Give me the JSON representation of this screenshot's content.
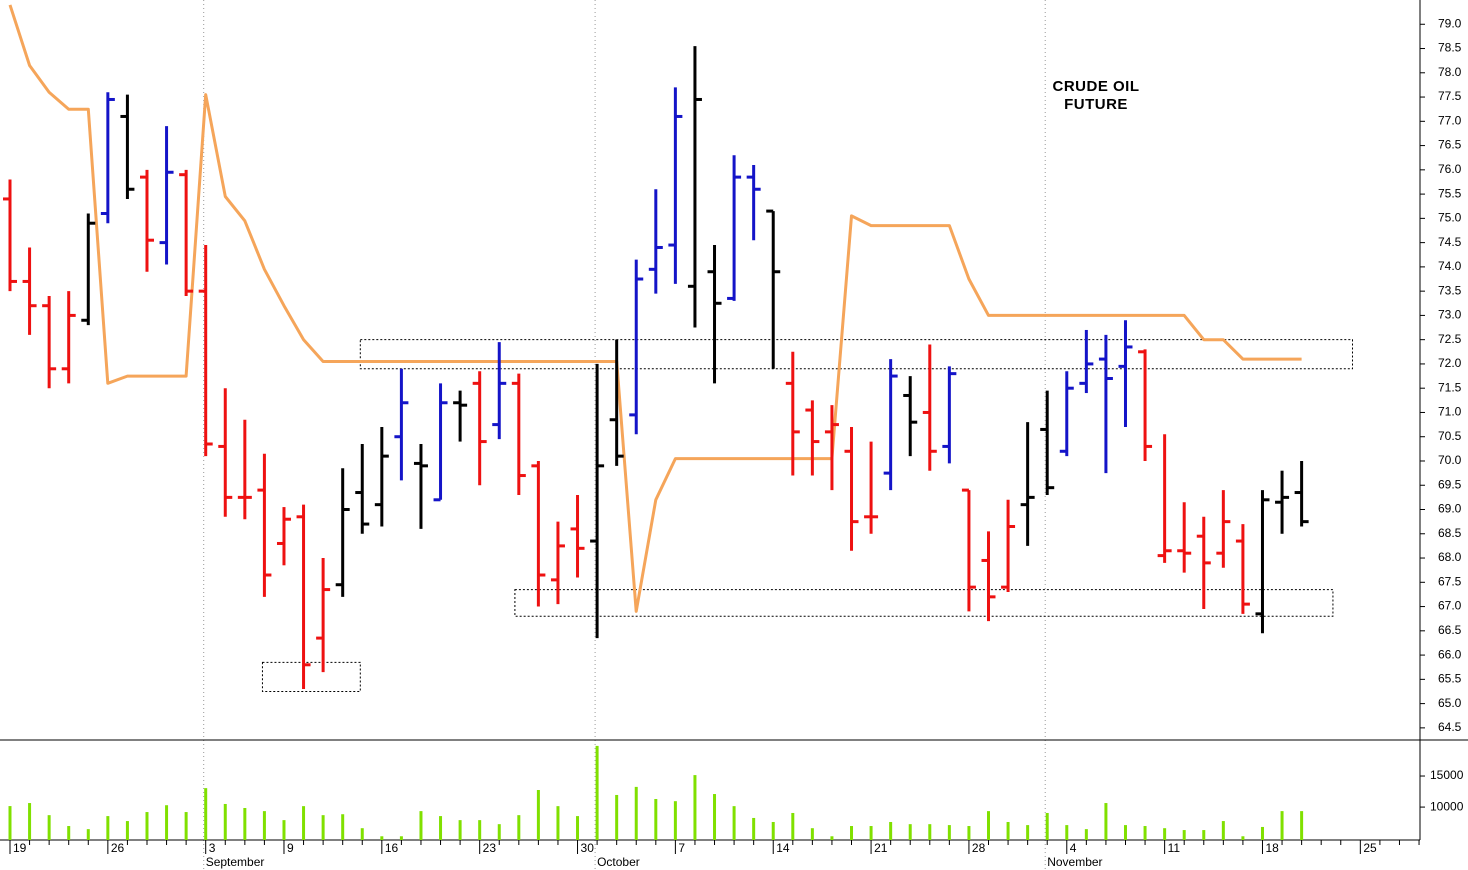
{
  "chart_data": [
    {
      "type": "ohlc",
      "title": "CRUDE OIL FUTURE",
      "ylim": [
        64.25,
        79.5
      ],
      "yticks": [
        64.5,
        {
          "value": 65,
          "label": "65.0"
        },
        65.5,
        {
          "value": 66,
          "label": "66.0"
        },
        66.5,
        {
          "value": 67,
          "label": "67.0"
        },
        67.5,
        {
          "value": 68,
          "label": "68.0"
        },
        68.5,
        {
          "value": 69,
          "label": "69.0"
        },
        69.5,
        {
          "value": 70,
          "label": "70.0"
        },
        70.5,
        {
          "value": 71,
          "label": "71.0"
        },
        71.5,
        {
          "value": 72,
          "label": "72.0"
        },
        72.5,
        {
          "value": 73,
          "label": "73.0"
        },
        73.5,
        {
          "value": 74,
          "label": "74.0"
        },
        74.5,
        {
          "value": 75,
          "label": "75.0"
        },
        75.5,
        {
          "value": 76,
          "label": "76.0"
        },
        76.5,
        {
          "value": 77,
          "label": "77.0"
        },
        77.5,
        {
          "value": 78,
          "label": "78.0"
        },
        78.5,
        {
          "value": 79,
          "label": "79.0"
        }
      ],
      "open": [
        75.4,
        73.7,
        73.2,
        71.9,
        72.9,
        75.1,
        77.1,
        75.85,
        74.5,
        75.9,
        73.5,
        70.3,
        69.25,
        69.4,
        68.3,
        68.85,
        66.35,
        67.45,
        69.35,
        69.1,
        70.5,
        69.95,
        69.2,
        71.2,
        71.6,
        70.75,
        71.6,
        69.9,
        67.55,
        68.6,
        68.35,
        70.85,
        70.95,
        73.95,
        74.45,
        73.6,
        73.9,
        73.35,
        75.85,
        75.15,
        71.6,
        71.05,
        70.6,
        70.2,
        68.85,
        69.75,
        71.35,
        71.0,
        70.3,
        69.4,
        67.95,
        67.4,
        69.1,
        70.65,
        70.2,
        71.6,
        72.1,
        71.95,
        72.25,
        68.05,
        68.15,
        68.45,
        68.1,
        68.35,
        66.85,
        69.15,
        69.35,
        null,
        null,
        null,
        null,
        null,
        null
      ],
      "high": [
        75.8,
        74.4,
        73.4,
        73.5,
        75.1,
        77.6,
        77.55,
        76.0,
        76.9,
        76.0,
        74.45,
        71.5,
        70.85,
        70.15,
        69.05,
        69.1,
        68.0,
        69.85,
        70.35,
        70.7,
        71.9,
        70.35,
        71.6,
        71.45,
        71.85,
        72.45,
        71.8,
        70.0,
        68.75,
        69.3,
        72.0,
        72.5,
        74.15,
        75.6,
        77.7,
        78.55,
        74.45,
        76.3,
        76.1,
        75.15,
        72.25,
        71.25,
        71.15,
        70.7,
        70.4,
        72.1,
        71.75,
        72.4,
        71.95,
        69.4,
        68.55,
        69.2,
        70.8,
        71.45,
        71.85,
        72.7,
        72.6,
        72.9,
        72.3,
        70.55,
        69.15,
        68.85,
        69.4,
        68.7,
        69.4,
        69.8,
        70.0,
        null,
        null,
        null,
        null,
        null,
        null
      ],
      "low": [
        73.5,
        72.6,
        71.5,
        71.6,
        72.8,
        74.9,
        75.4,
        73.9,
        74.05,
        73.4,
        70.1,
        68.85,
        68.8,
        67.2,
        67.85,
        65.3,
        65.65,
        67.2,
        68.5,
        68.65,
        69.6,
        68.6,
        69.2,
        70.4,
        69.5,
        70.45,
        69.3,
        67.0,
        67.05,
        67.6,
        66.35,
        69.9,
        70.55,
        73.45,
        73.65,
        72.75,
        71.6,
        73.3,
        74.55,
        71.9,
        69.7,
        69.7,
        69.4,
        68.15,
        68.5,
        69.4,
        70.1,
        69.8,
        69.95,
        66.9,
        66.7,
        67.3,
        68.25,
        69.3,
        70.1,
        71.4,
        69.75,
        70.7,
        70.0,
        67.9,
        67.7,
        66.95,
        67.8,
        66.85,
        66.45,
        68.5,
        68.65,
        null,
        null,
        null,
        null,
        null,
        null
      ],
      "close": [
        73.7,
        73.2,
        71.9,
        73.0,
        74.9,
        77.45,
        75.6,
        74.55,
        75.95,
        73.5,
        70.35,
        69.25,
        69.25,
        67.65,
        68.8,
        65.8,
        67.35,
        69.0,
        68.7,
        70.1,
        71.2,
        69.9,
        71.2,
        71.15,
        70.4,
        71.6,
        69.7,
        67.65,
        68.25,
        68.2,
        69.9,
        70.1,
        73.75,
        74.4,
        77.1,
        77.45,
        73.25,
        75.85,
        75.6,
        73.9,
        70.6,
        70.4,
        70.75,
        68.75,
        68.85,
        71.75,
        70.8,
        70.2,
        71.8,
        67.4,
        67.2,
        68.65,
        69.25,
        69.45,
        71.5,
        72.0,
        71.7,
        72.35,
        70.3,
        68.15,
        68.1,
        67.9,
        68.75,
        67.05,
        69.2,
        69.25,
        68.75,
        null,
        null,
        null,
        null,
        null,
        null
      ],
      "bar_colors": [
        "#ee1111",
        "#ee1111",
        "#ee1111",
        "#ee1111",
        "#000000",
        "#1414c8",
        "#000000",
        "#ee1111",
        "#1414c8",
        "#ee1111",
        "#ee1111",
        "#ee1111",
        "#ee1111",
        "#ee1111",
        "#ee1111",
        "#ee1111",
        "#ee1111",
        "#000000",
        "#000000",
        "#000000",
        "#1414c8",
        "#000000",
        "#1414c8",
        "#000000",
        "#ee1111",
        "#1414c8",
        "#ee1111",
        "#ee1111",
        "#ee1111",
        "#ee1111",
        "#000000",
        "#000000",
        "#1414c8",
        "#1414c8",
        "#1414c8",
        "#000000",
        "#000000",
        "#1414c8",
        "#1414c8",
        "#000000",
        "#ee1111",
        "#ee1111",
        "#ee1111",
        "#ee1111",
        "#ee1111",
        "#1414c8",
        "#000000",
        "#ee1111",
        "#1414c8",
        "#ee1111",
        "#ee1111",
        "#ee1111",
        "#000000",
        "#000000",
        "#1414c8",
        "#1414c8",
        "#1414c8",
        "#1414c8",
        "#ee1111",
        "#ee1111",
        "#ee1111",
        "#ee1111",
        "#ee1111",
        "#ee1111",
        "#000000",
        "#000000",
        "#000000",
        null,
        null,
        null,
        null,
        null,
        null
      ],
      "overlay": {
        "color": "#f5a55a",
        "values": [
          79.4,
          78.15,
          77.6,
          77.25,
          77.25,
          71.6,
          71.75,
          71.75,
          71.75,
          71.75,
          77.55,
          75.45,
          74.95,
          73.95,
          73.2,
          72.5,
          72.05,
          72.05,
          72.05,
          72.05,
          72.05,
          72.05,
          72.05,
          72.05,
          72.05,
          72.05,
          72.05,
          72.05,
          72.05,
          72.05,
          72.05,
          72.05,
          66.9,
          69.2,
          70.05,
          70.05,
          70.05,
          70.05,
          70.05,
          70.05,
          70.05,
          70.05,
          70.05,
          75.05,
          74.85,
          74.85,
          74.85,
          74.85,
          74.85,
          73.75,
          73.0,
          73.0,
          73.0,
          73.0,
          73.0,
          73.0,
          73.0,
          73.0,
          73.0,
          73.0,
          73.0,
          72.5,
          72.5,
          72.1,
          72.1,
          72.1,
          72.1,
          null,
          null,
          null,
          null,
          null,
          null
        ]
      },
      "zones": [
        {
          "x": [
            12.9,
            17.9
          ],
          "y": [
            65.25,
            65.85
          ]
        },
        {
          "x": [
            17.9,
            68.6
          ],
          "y": [
            71.9,
            72.5
          ]
        },
        {
          "x": [
            25.8,
            67.6
          ],
          "y": [
            66.8,
            67.35
          ]
        }
      ]
    },
    {
      "type": "bar",
      "color": "#80e000",
      "ylim": [
        4700,
        20800
      ],
      "yticks": [
        10000,
        15000
      ],
      "categories": [
        "19",
        null,
        null,
        null,
        null,
        "26",
        null,
        null,
        null,
        null,
        "3",
        null,
        null,
        null,
        "9",
        null,
        null,
        null,
        null,
        "16",
        null,
        null,
        null,
        null,
        "23",
        null,
        null,
        null,
        null,
        "30",
        null,
        null,
        null,
        null,
        "7",
        null,
        null,
        null,
        null,
        "14",
        null,
        null,
        null,
        null,
        "21",
        null,
        null,
        null,
        null,
        "28",
        null,
        null,
        null,
        null,
        "4",
        null,
        null,
        null,
        null,
        "11",
        null,
        null,
        null,
        null,
        "18",
        null,
        null,
        null,
        null,
        "25",
        null,
        null,
        null
      ],
      "month_labels": [
        null,
        null,
        null,
        null,
        null,
        null,
        null,
        null,
        null,
        null,
        "September",
        null,
        null,
        null,
        null,
        null,
        null,
        null,
        null,
        null,
        null,
        null,
        null,
        null,
        null,
        null,
        null,
        null,
        null,
        null,
        "October",
        null,
        null,
        null,
        null,
        null,
        null,
        null,
        null,
        null,
        null,
        null,
        null,
        null,
        null,
        null,
        null,
        null,
        null,
        null,
        null,
        null,
        null,
        "November",
        null,
        null,
        null,
        null,
        null,
        null,
        null,
        null,
        null,
        null,
        null,
        null,
        null,
        null,
        null,
        null,
        null,
        null,
        null
      ],
      "values": [
        10160,
        10650,
        8700,
        6950,
        6450,
        8550,
        7750,
        9200,
        10300,
        9200,
        13050,
        10500,
        9850,
        9350,
        7900,
        10150,
        8700,
        8850,
        6600,
        5300,
        5300,
        9350,
        8550,
        7900,
        7900,
        7250,
        8700,
        12750,
        10150,
        8550,
        19850,
        11950,
        13250,
        11300,
        10950,
        15150,
        12100,
        10150,
        8250,
        7600,
        9050,
        6600,
        5300,
        6950,
        6950,
        7600,
        7250,
        7250,
        7100,
        6950,
        9350,
        7600,
        7100,
        9050,
        7100,
        6450,
        10650,
        7100,
        6950,
        6600,
        6300,
        6300,
        7750,
        5300,
        6800,
        9350,
        9350,
        null,
        null,
        null,
        null,
        null,
        null
      ]
    }
  ]
}
